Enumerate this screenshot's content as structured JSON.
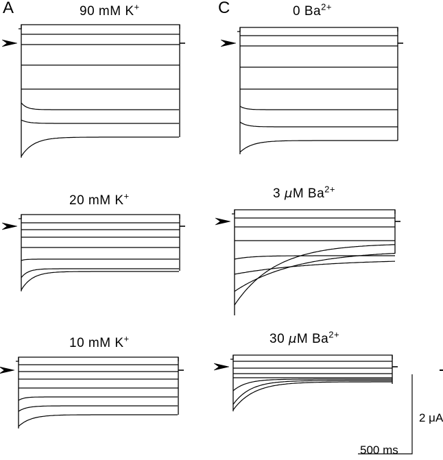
{
  "panel_letters": {
    "a": "A",
    "c": "C"
  },
  "titles": {
    "a1": {
      "main": "90 mM K",
      "sup": "+"
    },
    "a2": {
      "main": "20 mM K",
      "sup": "+"
    },
    "a3": {
      "main": "10 mM K",
      "sup": "+"
    },
    "c1": {
      "pre": "0 Ba",
      "sup": "2+"
    },
    "c2": {
      "pre": "3 ",
      "unit": "μ",
      "post": "M Ba",
      "sup": "2+"
    },
    "c3": {
      "pre": "30 ",
      "unit": "μ",
      "post": "M Ba",
      "sup": "2+"
    }
  },
  "scale_bar": {
    "time_label": "500 ms",
    "amp_label": "2 μA"
  },
  "colors": {
    "trace": "#000000",
    "background": "#ffffff"
  },
  "markers": {
    "holding_potential": "arrowhead-marker"
  }
}
